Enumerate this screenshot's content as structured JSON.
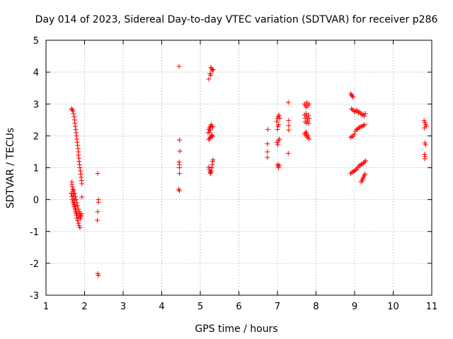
{
  "chart_data": {
    "type": "scatter",
    "title": "Day 014 of 2023, Sidereal Day-to-day VTEC variation (SDTVAR) for receiver p286",
    "xlabel": "GPS time / hours",
    "ylabel": "SDTVAR / TECUs",
    "xlim": [
      1,
      11
    ],
    "ylim": [
      -3,
      5
    ],
    "xticks": [
      "1",
      "2",
      "3",
      "4",
      "5",
      "6",
      "7",
      "8",
      "9",
      "10",
      "11"
    ],
    "yticks": [
      "-3",
      "-2",
      "-1",
      "0",
      "1",
      "2",
      "3",
      "4",
      "5"
    ],
    "grid": true,
    "marker": "+",
    "series": [
      {
        "name": "SDTVAR",
        "color": "#ff0000",
        "points": [
          [
            1.66,
            2.85
          ],
          [
            1.68,
            2.82
          ],
          [
            1.7,
            2.78
          ],
          [
            1.71,
            2.7
          ],
          [
            1.73,
            2.6
          ],
          [
            1.74,
            2.5
          ],
          [
            1.75,
            2.4
          ],
          [
            1.76,
            2.3
          ],
          [
            1.77,
            2.2
          ],
          [
            1.78,
            2.1
          ],
          [
            1.79,
            2.0
          ],
          [
            1.8,
            1.9
          ],
          [
            1.81,
            1.8
          ],
          [
            1.82,
            1.7
          ],
          [
            1.83,
            1.6
          ],
          [
            1.84,
            1.5
          ],
          [
            1.84,
            1.4
          ],
          [
            1.85,
            1.3
          ],
          [
            1.86,
            1.2
          ],
          [
            1.87,
            1.1
          ],
          [
            1.88,
            1.0
          ],
          [
            1.89,
            0.9
          ],
          [
            1.9,
            0.8
          ],
          [
            1.91,
            0.7
          ],
          [
            1.92,
            0.6
          ],
          [
            1.93,
            0.5
          ],
          [
            1.93,
            0.08
          ],
          [
            1.67,
            0.55
          ],
          [
            1.67,
            0.48
          ],
          [
            1.68,
            0.4
          ],
          [
            1.69,
            0.32
          ],
          [
            1.7,
            0.25
          ],
          [
            1.7,
            0.18
          ],
          [
            1.71,
            0.12
          ],
          [
            1.72,
            0.05
          ],
          [
            1.73,
            -0.02
          ],
          [
            1.74,
            -0.1
          ],
          [
            1.75,
            -0.18
          ],
          [
            1.76,
            -0.26
          ],
          [
            1.77,
            -0.34
          ],
          [
            1.78,
            -0.42
          ],
          [
            1.79,
            -0.5
          ],
          [
            1.8,
            -0.58
          ],
          [
            1.82,
            -0.66
          ],
          [
            1.84,
            -0.74
          ],
          [
            1.86,
            -0.82
          ],
          [
            1.88,
            -0.88
          ],
          [
            1.65,
            0.2
          ],
          [
            1.67,
            0.1
          ],
          [
            1.68,
            0.0
          ],
          [
            1.7,
            -0.08
          ],
          [
            1.72,
            -0.15
          ],
          [
            1.74,
            -0.22
          ],
          [
            1.76,
            -0.3
          ],
          [
            1.78,
            -0.38
          ],
          [
            1.8,
            -0.45
          ],
          [
            1.83,
            -0.5
          ],
          [
            1.86,
            -0.55
          ],
          [
            1.89,
            -0.6
          ],
          [
            1.91,
            -0.52
          ],
          [
            1.92,
            -0.45
          ],
          [
            1.72,
            0.3
          ],
          [
            1.74,
            0.2
          ],
          [
            1.76,
            0.1
          ],
          [
            1.78,
            0.0
          ],
          [
            1.8,
            -0.1
          ],
          [
            1.82,
            -0.2
          ],
          [
            1.84,
            -0.3
          ],
          [
            1.86,
            -0.38
          ],
          [
            1.88,
            -0.44
          ],
          [
            1.9,
            -0.5
          ],
          [
            2.34,
            0.82
          ],
          [
            2.36,
            0.0
          ],
          [
            2.36,
            -0.08
          ],
          [
            2.34,
            -0.38
          ],
          [
            2.33,
            -0.65
          ],
          [
            2.34,
            -2.32
          ],
          [
            2.36,
            -2.38
          ],
          [
            4.45,
            4.18
          ],
          [
            4.46,
            1.87
          ],
          [
            4.47,
            1.52
          ],
          [
            4.45,
            1.18
          ],
          [
            4.46,
            1.1
          ],
          [
            4.46,
            1.0
          ],
          [
            4.46,
            0.82
          ],
          [
            4.44,
            0.32
          ],
          [
            4.46,
            0.28
          ],
          [
            5.22,
            3.78
          ],
          [
            5.25,
            3.95
          ],
          [
            5.27,
            4.15
          ],
          [
            5.29,
            4.1
          ],
          [
            5.31,
            4.05
          ],
          [
            5.33,
            4.08
          ],
          [
            5.27,
            3.9
          ],
          [
            5.2,
            2.1
          ],
          [
            5.22,
            2.2
          ],
          [
            5.24,
            2.25
          ],
          [
            5.26,
            2.3
          ],
          [
            5.28,
            2.35
          ],
          [
            5.3,
            2.3
          ],
          [
            5.32,
            2.28
          ],
          [
            5.24,
            2.1
          ],
          [
            5.26,
            2.18
          ],
          [
            5.22,
            1.88
          ],
          [
            5.24,
            1.92
          ],
          [
            5.26,
            1.95
          ],
          [
            5.28,
            1.98
          ],
          [
            5.3,
            2.02
          ],
          [
            5.32,
            1.98
          ],
          [
            5.22,
            1.02
          ],
          [
            5.23,
            0.95
          ],
          [
            5.25,
            0.88
          ],
          [
            5.27,
            0.85
          ],
          [
            5.29,
            0.9
          ],
          [
            5.3,
            1.0
          ],
          [
            5.31,
            1.1
          ],
          [
            5.32,
            1.2
          ],
          [
            5.33,
            1.25
          ],
          [
            5.26,
            0.82
          ],
          [
            6.75,
            2.2
          ],
          [
            6.74,
            1.75
          ],
          [
            6.74,
            1.5
          ],
          [
            6.74,
            1.32
          ],
          [
            6.98,
            2.45
          ],
          [
            7.0,
            2.55
          ],
          [
            7.02,
            2.6
          ],
          [
            7.04,
            2.65
          ],
          [
            7.06,
            2.55
          ],
          [
            7.01,
            2.3
          ],
          [
            7.0,
            2.2
          ],
          [
            7.03,
            2.35
          ],
          [
            6.99,
            1.8
          ],
          [
            7.01,
            1.72
          ],
          [
            7.03,
            1.85
          ],
          [
            7.05,
            1.9
          ],
          [
            7.0,
            1.1
          ],
          [
            7.02,
            1.05
          ],
          [
            7.04,
            1.08
          ],
          [
            7.03,
            1.0
          ],
          [
            7.28,
            3.05
          ],
          [
            7.29,
            2.48
          ],
          [
            7.29,
            2.32
          ],
          [
            7.29,
            2.18
          ],
          [
            7.28,
            1.45
          ],
          [
            7.7,
            3.0
          ],
          [
            7.73,
            2.95
          ],
          [
            7.76,
            3.05
          ],
          [
            7.79,
            2.95
          ],
          [
            7.82,
            3.0
          ],
          [
            7.75,
            2.9
          ],
          [
            7.7,
            2.65
          ],
          [
            7.72,
            2.55
          ],
          [
            7.74,
            2.7
          ],
          [
            7.76,
            2.6
          ],
          [
            7.78,
            2.5
          ],
          [
            7.8,
            2.65
          ],
          [
            7.82,
            2.55
          ],
          [
            7.72,
            2.45
          ],
          [
            7.75,
            2.4
          ],
          [
            7.78,
            2.45
          ],
          [
            7.81,
            2.4
          ],
          [
            7.7,
            2.05
          ],
          [
            7.72,
            2.1
          ],
          [
            7.74,
            2.0
          ],
          [
            7.76,
            2.05
          ],
          [
            7.78,
            1.95
          ],
          [
            7.8,
            2.0
          ],
          [
            7.82,
            1.9
          ],
          [
            7.75,
            2.12
          ],
          [
            8.9,
            3.32
          ],
          [
            8.92,
            3.28
          ],
          [
            8.94,
            3.25
          ],
          [
            8.96,
            3.22
          ],
          [
            8.92,
            2.85
          ],
          [
            8.95,
            2.82
          ],
          [
            8.98,
            2.78
          ],
          [
            9.01,
            2.75
          ],
          [
            9.04,
            2.8
          ],
          [
            9.07,
            2.78
          ],
          [
            9.1,
            2.72
          ],
          [
            9.13,
            2.75
          ],
          [
            9.16,
            2.7
          ],
          [
            9.19,
            2.65
          ],
          [
            9.22,
            2.68
          ],
          [
            9.25,
            2.62
          ],
          [
            9.28,
            2.7
          ],
          [
            8.9,
            1.95
          ],
          [
            8.93,
            1.98
          ],
          [
            8.96,
            2.0
          ],
          [
            8.99,
            2.05
          ],
          [
            9.02,
            2.15
          ],
          [
            9.05,
            2.2
          ],
          [
            9.08,
            2.22
          ],
          [
            9.11,
            2.25
          ],
          [
            9.14,
            2.28
          ],
          [
            9.17,
            2.3
          ],
          [
            9.2,
            2.3
          ],
          [
            9.23,
            2.32
          ],
          [
            9.26,
            2.35
          ],
          [
            8.9,
            0.82
          ],
          [
            8.93,
            0.85
          ],
          [
            8.96,
            0.88
          ],
          [
            8.99,
            0.9
          ],
          [
            9.02,
            0.92
          ],
          [
            9.05,
            0.95
          ],
          [
            9.08,
            1.0
          ],
          [
            9.11,
            1.05
          ],
          [
            9.14,
            1.08
          ],
          [
            9.17,
            1.1
          ],
          [
            9.2,
            1.12
          ],
          [
            9.23,
            1.15
          ],
          [
            9.26,
            1.18
          ],
          [
            9.28,
            1.22
          ],
          [
            9.17,
            0.55
          ],
          [
            9.19,
            0.6
          ],
          [
            9.21,
            0.65
          ],
          [
            9.23,
            0.7
          ],
          [
            9.25,
            0.75
          ],
          [
            9.27,
            0.8
          ],
          [
            10.8,
            2.48
          ],
          [
            10.82,
            2.42
          ],
          [
            10.84,
            2.35
          ],
          [
            10.86,
            2.3
          ],
          [
            10.81,
            2.25
          ],
          [
            10.82,
            1.78
          ],
          [
            10.84,
            1.72
          ],
          [
            10.81,
            1.42
          ],
          [
            10.83,
            1.35
          ],
          [
            10.82,
            1.28
          ]
        ]
      }
    ]
  }
}
